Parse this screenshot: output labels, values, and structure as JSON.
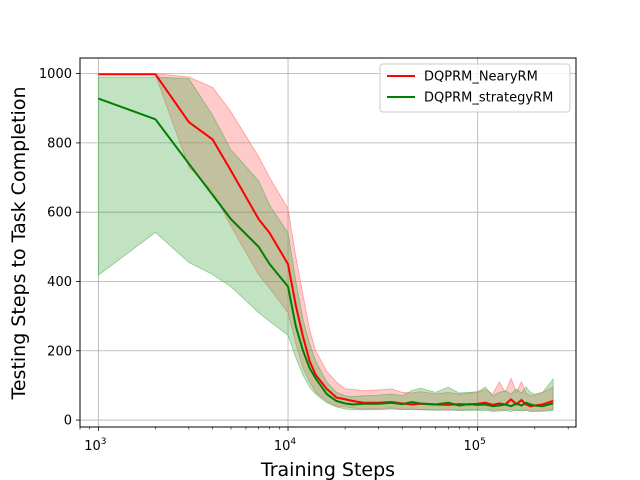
{
  "chart_data": {
    "type": "line",
    "title": "",
    "xlabel": "Training Steps",
    "ylabel": "Testing Steps to Task Completion",
    "xscale": "log",
    "xlim": [
      800,
      330000
    ],
    "ylim": [
      -20,
      1045
    ],
    "x_ticks": [
      {
        "value": 1000,
        "base": "10",
        "exp": "3"
      },
      {
        "value": 10000,
        "base": "10",
        "exp": "4"
      },
      {
        "value": 100000,
        "base": "10",
        "exp": "5"
      }
    ],
    "y_ticks": [
      0,
      200,
      400,
      600,
      800,
      1000
    ],
    "grid": true,
    "legend_position": "top-right",
    "series": [
      {
        "name": "DQPRM_NearyRM",
        "color": "#ff0000",
        "band_color": "#ff6666",
        "x": [
          1000,
          2000,
          3000,
          4000,
          5000,
          7000,
          8000,
          10000,
          11000,
          12000,
          13000,
          14000,
          16000,
          18000,
          20000,
          22000,
          25000,
          30000,
          35000,
          40000,
          45000,
          50000,
          60000,
          70000,
          80000,
          90000,
          100000,
          110000,
          120000,
          130000,
          140000,
          150000,
          160000,
          170000,
          180000,
          190000,
          200000,
          220000,
          250000
        ],
        "mean": [
          998,
          998,
          860,
          810,
          720,
          580,
          540,
          450,
          330,
          240,
          170,
          130,
          90,
          65,
          60,
          55,
          50,
          50,
          52,
          48,
          45,
          47,
          45,
          44,
          46,
          45,
          47,
          50,
          44,
          48,
          45,
          60,
          45,
          58,
          45,
          40,
          42,
          45,
          55
        ],
        "upper": [
          1000,
          1000,
          990,
          960,
          890,
          760,
          700,
          610,
          470,
          360,
          260,
          200,
          140,
          110,
          90,
          88,
          85,
          87,
          90,
          80,
          78,
          82,
          75,
          80,
          75,
          78,
          80,
          88,
          75,
          110,
          80,
          120,
          80,
          110,
          78,
          70,
          72,
          80,
          95
        ],
        "lower": [
          996,
          996,
          730,
          660,
          560,
          420,
          380,
          310,
          220,
          150,
          110,
          80,
          55,
          40,
          38,
          35,
          32,
          33,
          35,
          32,
          30,
          30,
          30,
          28,
          30,
          30,
          30,
          32,
          28,
          30,
          28,
          32,
          28,
          30,
          28,
          25,
          25,
          28,
          30
        ]
      },
      {
        "name": "DQPRM_strategyRM",
        "color": "#008000",
        "band_color": "#4caf50",
        "x": [
          1000,
          2000,
          3000,
          4000,
          5000,
          7000,
          8000,
          10000,
          11000,
          12000,
          13000,
          14000,
          16000,
          18000,
          20000,
          22000,
          25000,
          30000,
          35000,
          40000,
          45000,
          50000,
          60000,
          70000,
          80000,
          90000,
          100000,
          110000,
          120000,
          130000,
          140000,
          150000,
          160000,
          170000,
          180000,
          190000,
          200000,
          220000,
          250000
        ],
        "mean": [
          928,
          868,
          740,
          650,
          580,
          500,
          450,
          385,
          270,
          200,
          150,
          120,
          75,
          55,
          48,
          45,
          47,
          47,
          50,
          46,
          52,
          48,
          45,
          50,
          42,
          46,
          44,
          45,
          40,
          42,
          45,
          40,
          48,
          42,
          50,
          45,
          42,
          40,
          48
        ],
        "upper": [
          990,
          990,
          985,
          880,
          780,
          690,
          620,
          540,
          400,
          290,
          220,
          170,
          110,
          80,
          70,
          68,
          70,
          72,
          75,
          70,
          85,
          92,
          80,
          95,
          78,
          80,
          82,
          95,
          70,
          80,
          85,
          75,
          90,
          78,
          95,
          80,
          75,
          80,
          118
        ],
        "lower": [
          418,
          542,
          455,
          420,
          385,
          310,
          285,
          245,
          180,
          130,
          95,
          75,
          50,
          38,
          32,
          30,
          30,
          30,
          32,
          30,
          32,
          30,
          28,
          30,
          27,
          28,
          28,
          28,
          25,
          26,
          28,
          25,
          28,
          26,
          28,
          26,
          25,
          25,
          28
        ]
      }
    ]
  }
}
